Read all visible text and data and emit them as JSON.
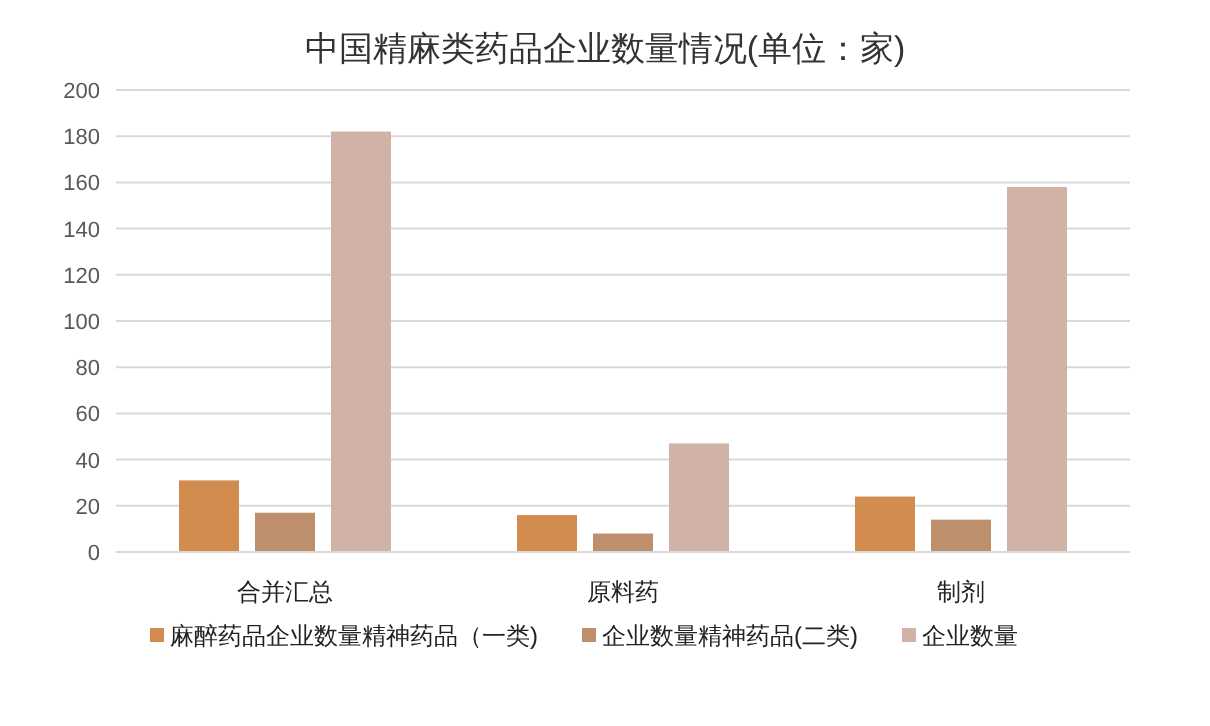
{
  "chart_data": {
    "type": "bar",
    "title": "中国精麻类药品企业数量情况(单位：家)",
    "categories": [
      "合并汇总",
      "原料药",
      "制剂"
    ],
    "series": [
      {
        "name": "麻醉药品企业数量精神药品（一类)",
        "color": "#d38c4f",
        "values": [
          31,
          16,
          24
        ]
      },
      {
        "name": "企业数量精神药品(二类)",
        "color": "#bd8f6c",
        "values": [
          17,
          8,
          14
        ]
      },
      {
        "name": "企业数量",
        "color": "#d0b2a7",
        "values": [
          182,
          47,
          158
        ]
      }
    ],
    "ylim": [
      0,
      200
    ],
    "yticks": [
      0,
      20,
      40,
      60,
      80,
      100,
      120,
      140,
      160,
      180,
      200
    ],
    "grid": "y",
    "legend": "bottom"
  }
}
